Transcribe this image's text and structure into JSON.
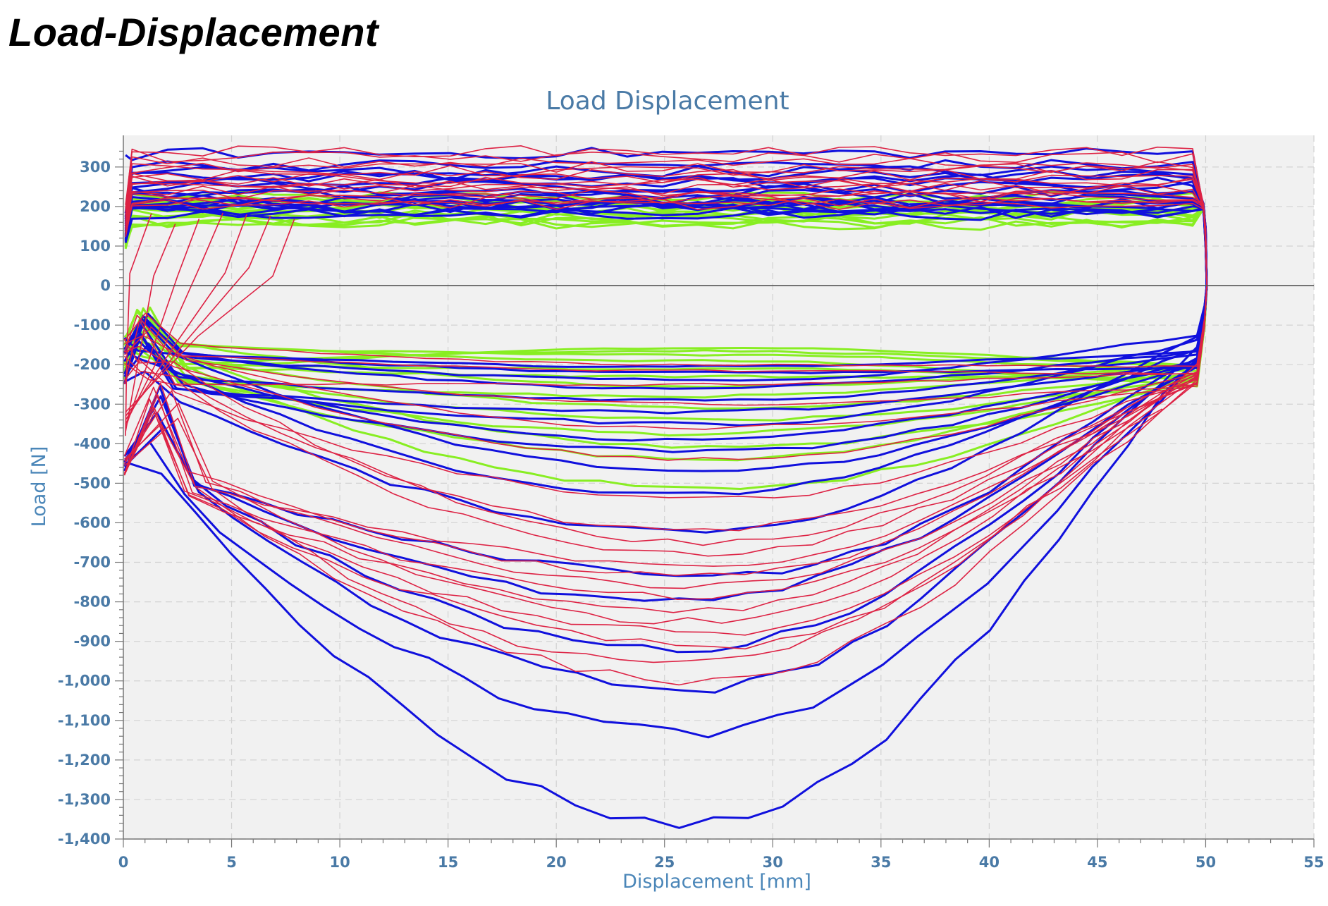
{
  "page": {
    "heading": "Load-Displacement"
  },
  "chart_data": {
    "type": "line",
    "title": "Load Displacement",
    "xlabel": "Displacement [mm]",
    "ylabel": "Load [N]",
    "xlim": [
      0,
      55
    ],
    "ylim": [
      -1400,
      380
    ],
    "x_ticks": [
      0,
      5,
      10,
      15,
      20,
      25,
      30,
      35,
      40,
      45,
      50,
      55
    ],
    "x_tick_labels": [
      "0",
      "5",
      "10",
      "15",
      "20",
      "25",
      "30",
      "35",
      "40",
      "45",
      "50",
      "55"
    ],
    "y_ticks": [
      300,
      200,
      100,
      0,
      -100,
      -200,
      -300,
      -400,
      -500,
      -600,
      -700,
      -800,
      -900,
      -1000,
      -1100,
      -1200,
      -1300,
      -1400
    ],
    "y_tick_labels": [
      "300",
      "200",
      "100",
      "0",
      "-100",
      "-200",
      "-300",
      "-400",
      "-500",
      "-600",
      "-700",
      "-800",
      "-900",
      "-1,000",
      "-1,100",
      "-1,200",
      "-1,300",
      "-1,400"
    ],
    "grid": true,
    "legend": "none",
    "colors": {
      "blue": "#1010dd",
      "red": "#dd2244",
      "green": "#88ee22",
      "zero_line": "#555555",
      "plot_background": "#f1f1f1",
      "grid": "#d2d2d2"
    },
    "series_groups": [
      {
        "color": "blue",
        "tension_loads": [
          335,
          305,
          290,
          280,
          270,
          260,
          250,
          240,
          230,
          220,
          215,
          210,
          205,
          200,
          195,
          190,
          185,
          180
        ],
        "compression_troughs": [
          -1360,
          -1130,
          -1020,
          -920,
          -800,
          -730,
          -620,
          -530,
          -470,
          -420,
          -390,
          -350,
          -320,
          -290,
          -260,
          -240,
          -220,
          -205
        ]
      },
      {
        "color": "red",
        "tension_loads": [
          340,
          325,
          310,
          300,
          290,
          280,
          270,
          260,
          255,
          245,
          240,
          230,
          225,
          215,
          210,
          205
        ],
        "compression_troughs": [
          -1000,
          -960,
          -915,
          -880,
          -850,
          -820,
          -790,
          -760,
          -735,
          -705,
          -680,
          -650,
          -620,
          -540,
          -440,
          -360,
          -300,
          -250,
          -215,
          -200
        ]
      },
      {
        "color": "green",
        "tension_loads": [
          225,
          215,
          210,
          205,
          200,
          195,
          190,
          185,
          180,
          175,
          170,
          165,
          160,
          155
        ],
        "compression_troughs": [
          -515,
          -440,
          -410,
          -375,
          -340,
          -310,
          -280,
          -255,
          -230,
          -210,
          -190,
          -175,
          -165,
          -158
        ]
      }
    ]
  }
}
